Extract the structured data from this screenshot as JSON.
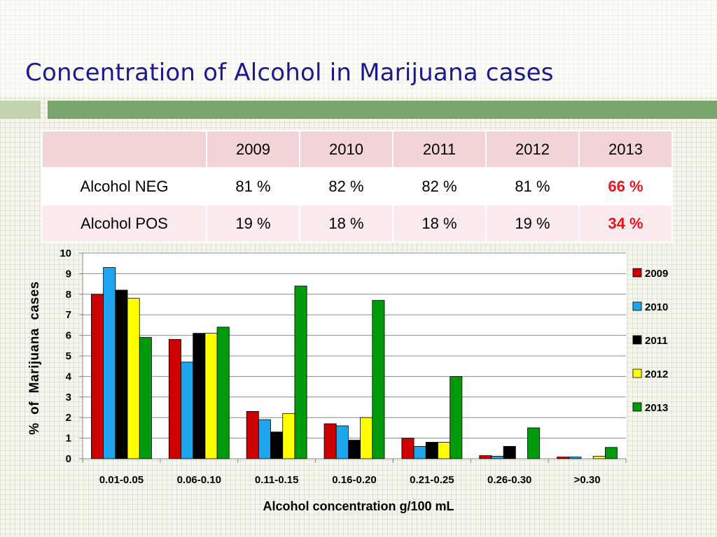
{
  "title": "Concentration of Alcohol in Marijuana cases",
  "table": {
    "headers": [
      "",
      "2009",
      "2010",
      "2011",
      "2012",
      "2013"
    ],
    "rows": [
      {
        "label": "Alcohol NEG",
        "values": [
          "81 %",
          "82 %",
          "82 %",
          "81 %",
          "66 %"
        ]
      },
      {
        "label": "Alcohol POS",
        "values": [
          "19 %",
          "18 %",
          "18 %",
          "19 %",
          "34 %"
        ]
      }
    ],
    "highlight_color": "#e8141c"
  },
  "chart_data": {
    "type": "bar",
    "xlabel": "Alcohol concentration g/100 mL",
    "ylabel": "%  of  Marijuana  cases",
    "ylim": [
      0,
      10
    ],
    "yticks": [
      "0",
      "1",
      "2",
      "3",
      "4",
      "5",
      "6",
      "7",
      "8",
      "9",
      "10"
    ],
    "grid": true,
    "legend_position": "right",
    "categories": [
      "0.01-0.05",
      "0.06-0.10",
      "0.11-0.15",
      "0.16-0.20",
      "0.21-0.25",
      "0.26-0.30",
      ">0.30"
    ],
    "series": [
      {
        "name": "2009",
        "color": "#cc0000",
        "values": [
          8.0,
          5.8,
          2.3,
          1.7,
          1.0,
          0.15,
          0.08
        ]
      },
      {
        "name": "2010",
        "color": "#1ea5ee",
        "values": [
          9.3,
          4.7,
          1.9,
          1.6,
          0.6,
          0.12,
          0.08
        ]
      },
      {
        "name": "2011",
        "color": "#000000",
        "values": [
          8.2,
          6.1,
          1.3,
          0.9,
          0.8,
          0.6,
          0.0
        ]
      },
      {
        "name": "2012",
        "color": "#ffff00",
        "values": [
          7.8,
          6.1,
          2.2,
          2.0,
          0.8,
          0.0,
          0.12
        ]
      },
      {
        "name": "2013",
        "color": "#009a0d",
        "values": [
          5.9,
          6.4,
          8.4,
          7.7,
          4.0,
          1.5,
          0.55
        ]
      }
    ]
  }
}
